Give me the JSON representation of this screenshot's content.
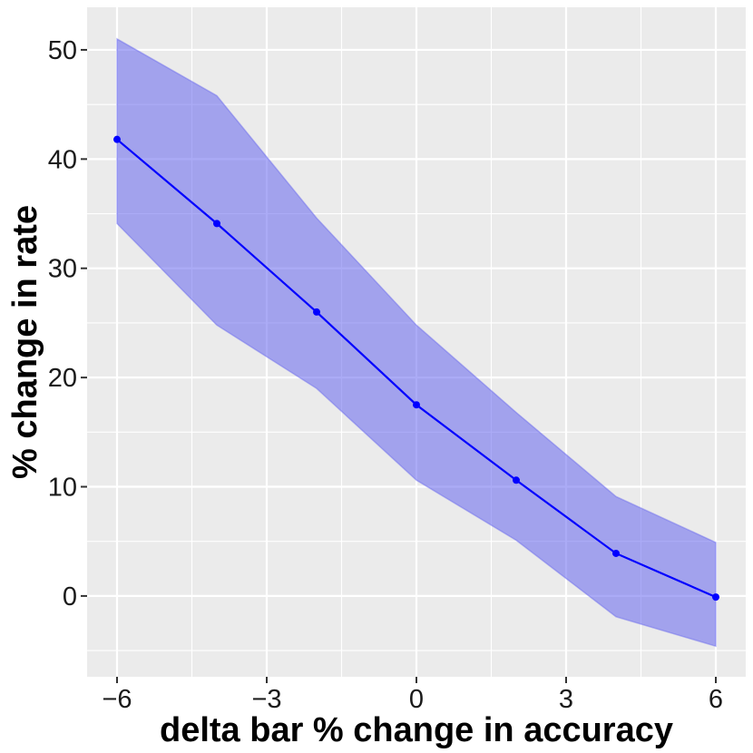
{
  "chart_data": {
    "type": "line",
    "title": "",
    "xlabel": "delta bar % change in accuracy",
    "ylabel": "% change in rate",
    "xlim": [
      -6.6,
      6.6
    ],
    "ylim": [
      -7.4,
      53.9
    ],
    "x_ticks": [
      -6,
      -3,
      0,
      3,
      6
    ],
    "x_tick_labels": [
      "−6",
      "−3",
      "0",
      "3",
      "6"
    ],
    "y_ticks": [
      0,
      10,
      20,
      30,
      40,
      50
    ],
    "y_tick_labels": [
      "0",
      "10",
      "20",
      "30",
      "40",
      "50"
    ],
    "grid": true,
    "legend": "none",
    "x": [
      -6,
      -4,
      -2,
      0,
      2,
      4,
      6
    ],
    "series": [
      {
        "values": [
          41.8,
          34.1,
          26.0,
          17.5,
          10.6,
          3.9,
          -0.1
        ],
        "lower": [
          34.1,
          24.8,
          19.0,
          10.6,
          5.1,
          -1.9,
          -4.6
        ],
        "upper": [
          51.0,
          45.8,
          34.6,
          24.8,
          16.8,
          9.1,
          4.9
        ]
      }
    ],
    "colors": {
      "line": "#0000ff",
      "ribbon": "#6666ee",
      "panel": "#ebebeb",
      "grid": "#ffffff"
    }
  }
}
